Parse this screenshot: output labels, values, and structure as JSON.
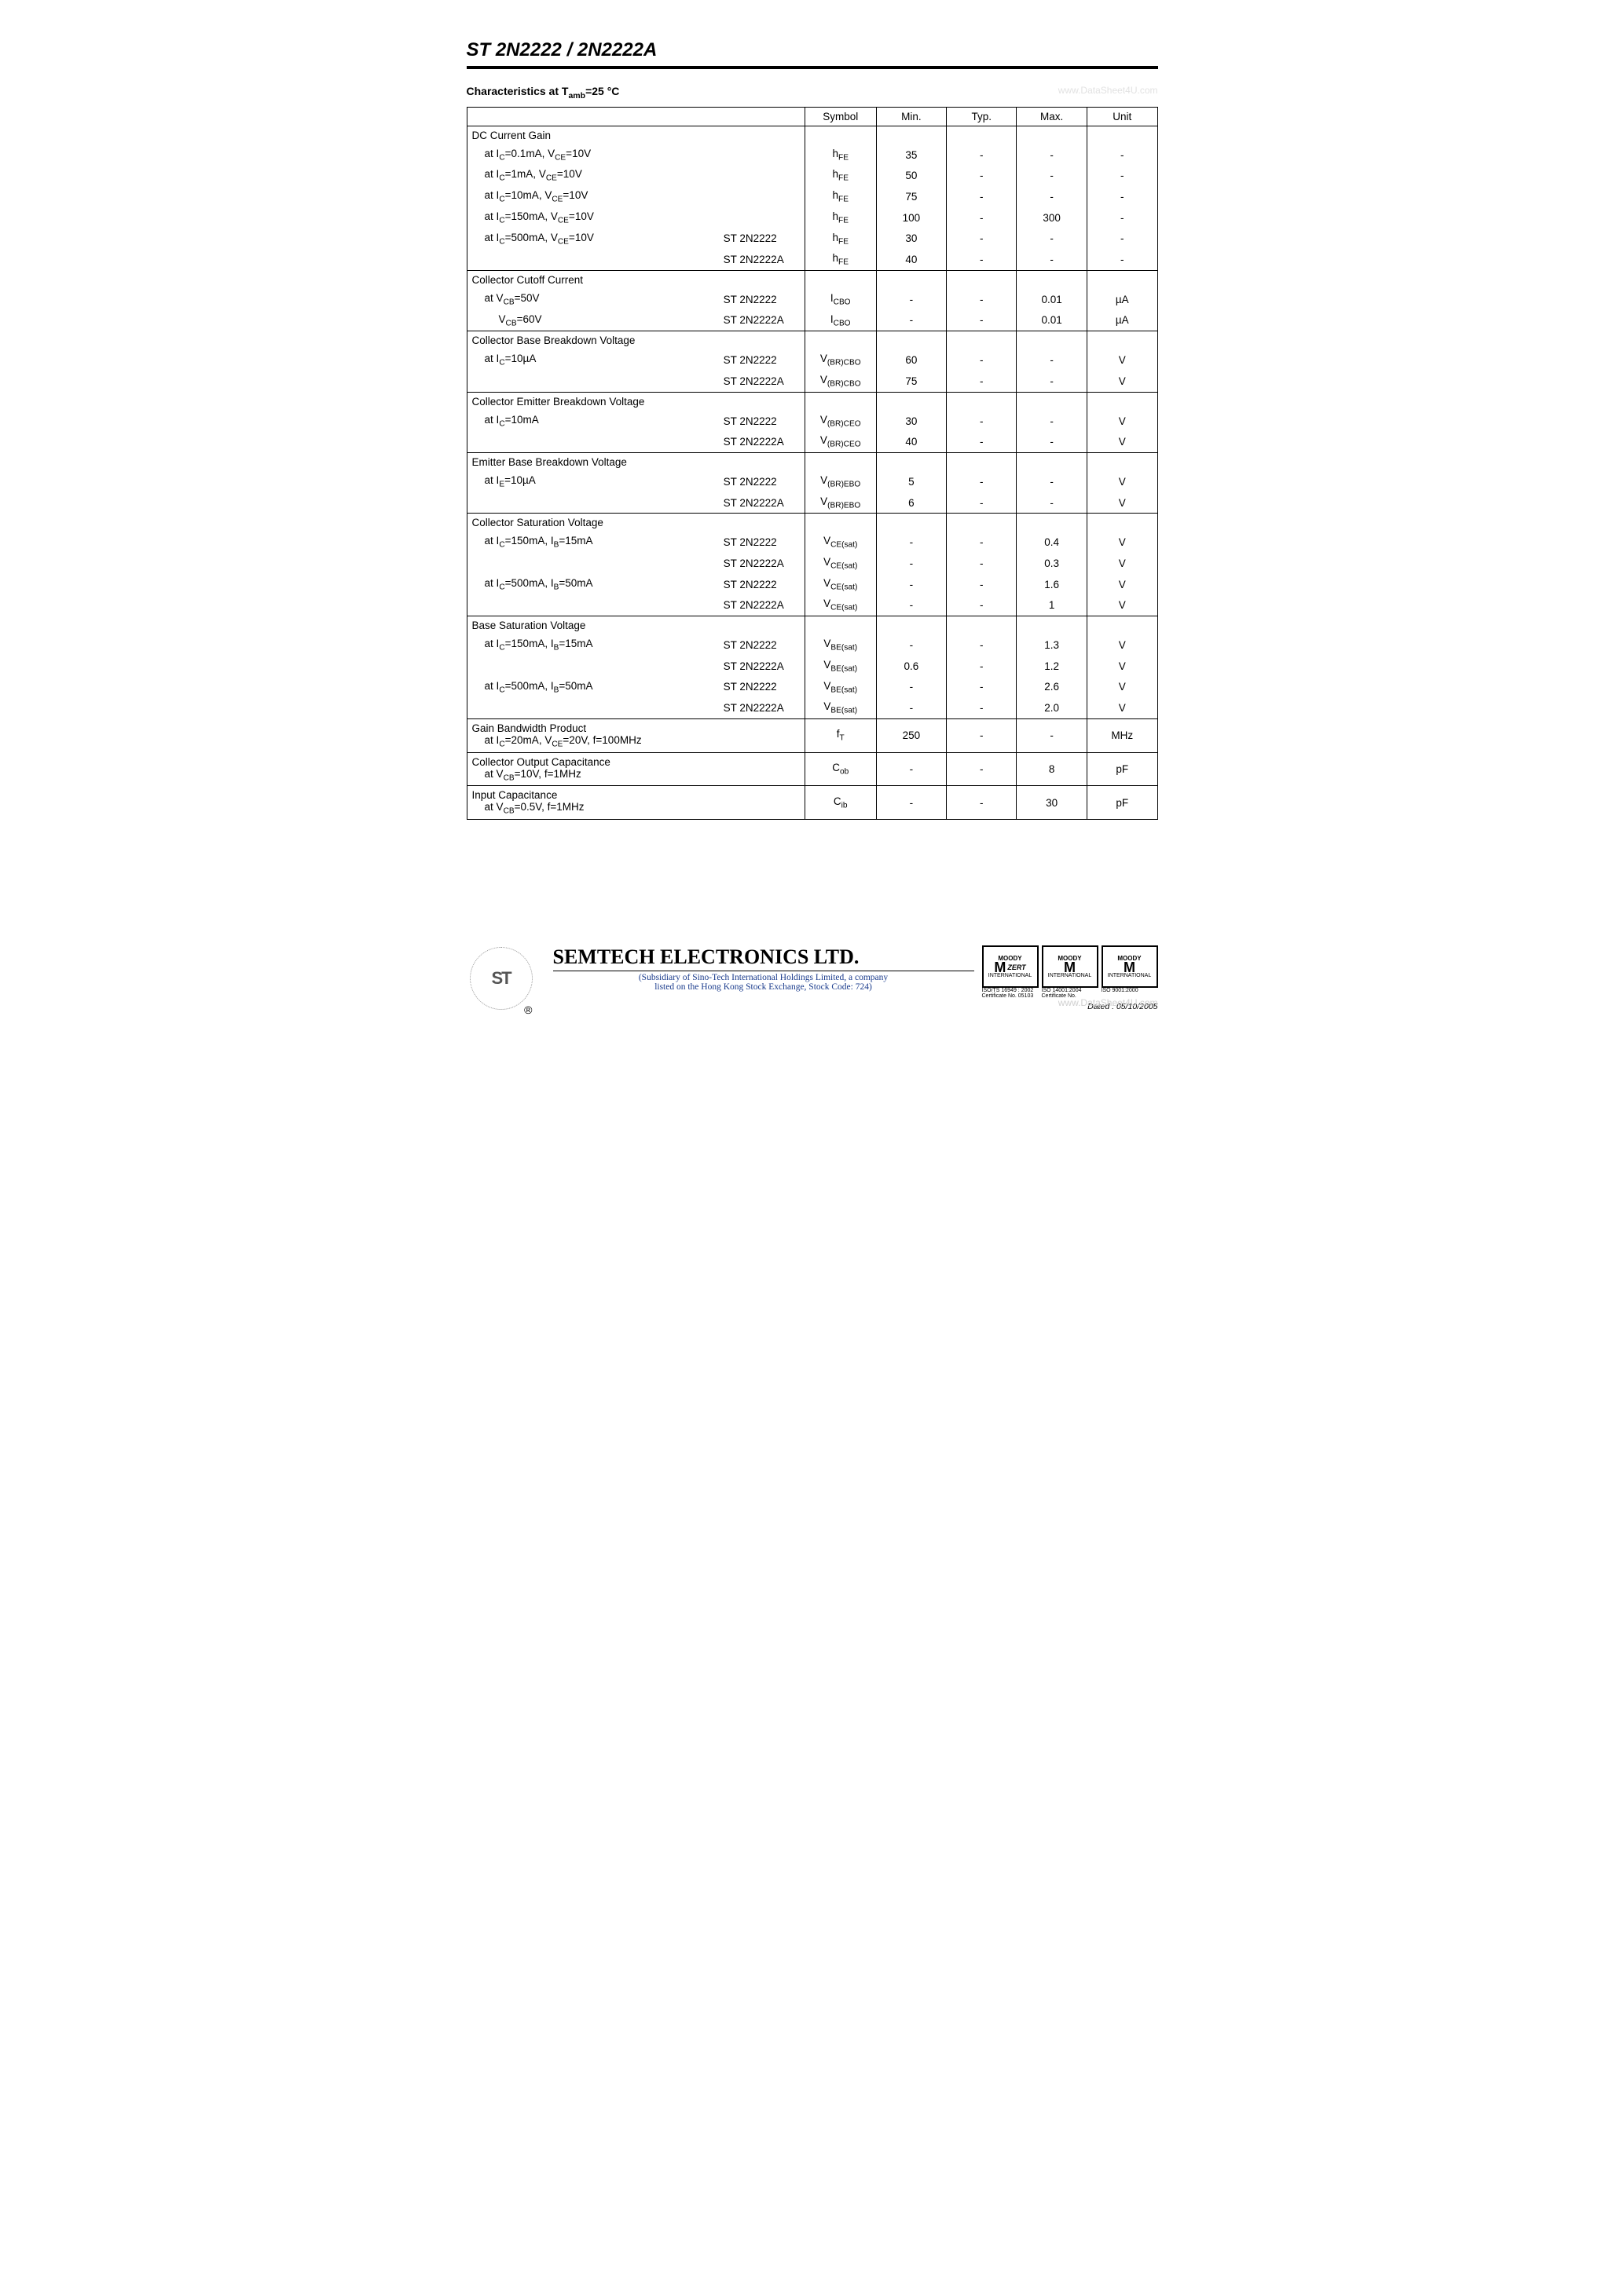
{
  "header": {
    "title": "ST 2N2222 / 2N2222A",
    "section_label_plain": "Characteristics at ",
    "section_label_tamb": "T",
    "section_label_tamb_sub": "amb",
    "section_label_tail": "=25 °C",
    "watermark_top": "www.DataSheet4U.com"
  },
  "columns": {
    "param": "",
    "symbol": "Symbol",
    "min": "Min.",
    "typ": "Typ.",
    "max": "Max.",
    "unit": "Unit"
  },
  "sections": [
    {
      "title": "DC Current Gain",
      "rows": [
        {
          "cond": "at I_C=0.1mA, V_CE=10V",
          "device": "",
          "sym": "h_FE",
          "min": "35",
          "typ": "-",
          "max": "-",
          "unit": "-"
        },
        {
          "cond": "at I_C=1mA, V_CE=10V",
          "device": "",
          "sym": "h_FE",
          "min": "50",
          "typ": "-",
          "max": "-",
          "unit": "-"
        },
        {
          "cond": "at I_C=10mA, V_CE=10V",
          "device": "",
          "sym": "h_FE",
          "min": "75",
          "typ": "-",
          "max": "-",
          "unit": "-"
        },
        {
          "cond": "at I_C=150mA, V_CE=10V",
          "device": "",
          "sym": "h_FE",
          "min": "100",
          "typ": "-",
          "max": "300",
          "unit": "-"
        },
        {
          "cond": "at I_C=500mA, V_CE=10V",
          "device": "ST 2N2222",
          "sym": "h_FE",
          "min": "30",
          "typ": "-",
          "max": "-",
          "unit": "-"
        },
        {
          "cond": "",
          "device": "ST 2N2222A",
          "sym": "h_FE",
          "min": "40",
          "typ": "-",
          "max": "-",
          "unit": "-"
        }
      ]
    },
    {
      "title": "Collector Cutoff Current",
      "rows": [
        {
          "cond": "at V_CB=50V",
          "device": "ST 2N2222",
          "sym": "I_CBO",
          "min": "-",
          "typ": "-",
          "max": "0.01",
          "unit": "µA"
        },
        {
          "cond": "V_CB=60V",
          "sub": true,
          "device": "ST 2N2222A",
          "sym": "I_CBO",
          "min": "-",
          "typ": "-",
          "max": "0.01",
          "unit": "µA"
        }
      ]
    },
    {
      "title": "Collector Base Breakdown Voltage",
      "rows": [
        {
          "cond": "at I_C=10µA",
          "device": "ST 2N2222",
          "sym": "V_(BR)CBO",
          "min": "60",
          "typ": "-",
          "max": "-",
          "unit": "V"
        },
        {
          "cond": "",
          "device": "ST 2N2222A",
          "sym": "V_(BR)CBO",
          "min": "75",
          "typ": "-",
          "max": "-",
          "unit": "V"
        }
      ]
    },
    {
      "title": "Collector Emitter Breakdown Voltage",
      "rows": [
        {
          "cond": "at I_C=10mA",
          "device": "ST 2N2222",
          "sym": "V_(BR)CEO",
          "min": "30",
          "typ": "-",
          "max": "-",
          "unit": "V"
        },
        {
          "cond": "",
          "device": "ST 2N2222A",
          "sym": "V_(BR)CEO",
          "min": "40",
          "typ": "-",
          "max": "-",
          "unit": "V"
        }
      ]
    },
    {
      "title": "Emitter Base Breakdown Voltage",
      "rows": [
        {
          "cond": "at I_E=10µA",
          "device": "ST 2N2222",
          "sym": "V_(BR)EBO",
          "min": "5",
          "typ": "-",
          "max": "-",
          "unit": "V"
        },
        {
          "cond": "",
          "device": "ST 2N2222A",
          "sym": "V_(BR)EBO",
          "min": "6",
          "typ": "-",
          "max": "-",
          "unit": "V"
        }
      ]
    },
    {
      "title": "Collector Saturation Voltage",
      "rows": [
        {
          "cond": "at I_C=150mA, I_B=15mA",
          "device": "ST 2N2222",
          "sym": "V_CE(sat)",
          "min": "-",
          "typ": "-",
          "max": "0.4",
          "unit": "V"
        },
        {
          "cond": "",
          "device": "ST 2N2222A",
          "sym": "V_CE(sat)",
          "min": "-",
          "typ": "-",
          "max": "0.3",
          "unit": "V"
        },
        {
          "cond": "at I_C=500mA, I_B=50mA",
          "device": "ST 2N2222",
          "sym": "V_CE(sat)",
          "min": "-",
          "typ": "-",
          "max": "1.6",
          "unit": "V"
        },
        {
          "cond": "",
          "device": "ST 2N2222A",
          "sym": "V_CE(sat)",
          "min": "-",
          "typ": "-",
          "max": "1",
          "unit": "V"
        }
      ]
    },
    {
      "title": "Base Saturation Voltage",
      "rows": [
        {
          "cond": "at I_C=150mA, I_B=15mA",
          "device": "ST 2N2222",
          "sym": "V_BE(sat)",
          "min": "-",
          "typ": "-",
          "max": "1.3",
          "unit": "V"
        },
        {
          "cond": "",
          "device": "ST 2N2222A",
          "sym": "V_BE(sat)",
          "min": "0.6",
          "typ": "-",
          "max": "1.2",
          "unit": "V"
        },
        {
          "cond": "at I_C=500mA, I_B=50mA",
          "device": "ST 2N2222",
          "sym": "V_BE(sat)",
          "min": "-",
          "typ": "-",
          "max": "2.6",
          "unit": "V"
        },
        {
          "cond": "",
          "device": "ST 2N2222A",
          "sym": "V_BE(sat)",
          "min": "-",
          "typ": "-",
          "max": "2.0",
          "unit": "V"
        }
      ]
    },
    {
      "title": "Gain Bandwidth Product",
      "title_cond": "at I_C=20mA, V_CE=20V, f=100MHz",
      "merged": true,
      "rows": [
        {
          "sym": "f_T",
          "min": "250",
          "typ": "-",
          "max": "-",
          "unit": "MHz"
        }
      ]
    },
    {
      "title": "Collector Output Capacitance",
      "title_cond": "at V_CB=10V, f=1MHz",
      "merged": true,
      "rows": [
        {
          "sym": "C_ob",
          "min": "-",
          "typ": "-",
          "max": "8",
          "unit": "pF"
        }
      ]
    },
    {
      "title": "Input Capacitance",
      "title_cond": "at V_CB=0.5V, f=1MHz",
      "merged": true,
      "rows": [
        {
          "sym": "C_ib",
          "min": "-",
          "typ": "-",
          "max": "30",
          "unit": "pF"
        }
      ]
    }
  ],
  "footer": {
    "company": "SEMTECH ELECTRONICS LTD.",
    "subsidiary_1": "(Subsidiary of Sino-Tech International Holdings Limited, a company",
    "subsidiary_2": "listed on the Hong Kong Stock Exchange, Stock Code: 724)",
    "logo_text": "ST",
    "reg": "®",
    "certs": [
      {
        "top": "MOODY",
        "mid": "M",
        "side": "ZERT",
        "bottom": "INTERNATIONAL",
        "caption1": "ISO/TS 16949 : 2002",
        "caption2": "Certificate No. 05103"
      },
      {
        "top": "MOODY",
        "mid": "M",
        "side": "",
        "bottom": "INTERNATIONAL",
        "caption1": "ISO 14001:2004",
        "caption2": "Certificate No."
      },
      {
        "top": "MOODY",
        "mid": "M",
        "side": "",
        "bottom": "INTERNATIONAL",
        "caption1": "ISO 9001:2000",
        "caption2": ""
      }
    ],
    "watermark_bottom": "www.DataSheet4U.com",
    "dated": "Dated : 05/10/2005"
  }
}
